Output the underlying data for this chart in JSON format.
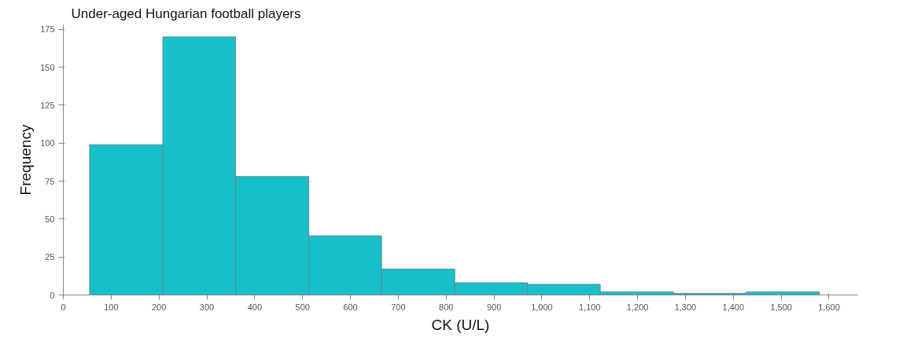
{
  "chart_data": {
    "type": "histogram",
    "title": "Under-aged Hungarian football players",
    "xlabel": "CK (U/L)",
    "ylabel": "Frequency",
    "bins": [
      55,
      208,
      360,
      513,
      665,
      818,
      970,
      1122,
      1275,
      1427,
      1580
    ],
    "values": [
      99,
      170,
      78,
      39,
      17,
      8,
      7,
      2,
      1,
      2
    ],
    "color": "#17c0c9",
    "xlim": [
      0,
      1660
    ],
    "ylim": [
      0,
      178
    ],
    "xticks": [
      0,
      100,
      200,
      300,
      400,
      500,
      600,
      700,
      800,
      900,
      {
        "value": 1000,
        "label": "1,000"
      },
      {
        "value": 1100,
        "label": "1,100"
      },
      {
        "value": 1200,
        "label": "1,200"
      },
      {
        "value": 1300,
        "label": "1,300"
      },
      {
        "value": 1400,
        "label": "1,400"
      },
      {
        "value": 1500,
        "label": "1,500"
      },
      {
        "value": 1600,
        "label": "1,600"
      }
    ],
    "yticks": [
      0,
      25,
      50,
      75,
      100,
      125,
      150,
      175
    ],
    "grid": false
  }
}
